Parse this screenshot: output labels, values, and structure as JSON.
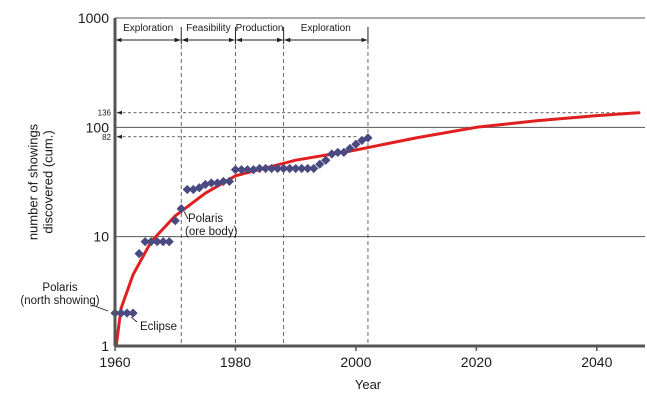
{
  "chart_data": {
    "type": "scatter",
    "xlabel": "Year",
    "ylabel": "number of showings discovered (cum.)",
    "y_scale": "log",
    "xlim": [
      1960,
      2048
    ],
    "ylim": [
      1,
      1000
    ],
    "x_ticks": [
      1960,
      1980,
      2000,
      2020,
      2040
    ],
    "y_ticks": [
      1,
      10,
      100,
      1000
    ],
    "grid": "horizontal",
    "legend": "none",
    "colors": {
      "points": "#4a4a80",
      "fit_curve": "#e02020",
      "grid": "#555555"
    },
    "series": [
      {
        "type": "scatter",
        "marker": "diamond",
        "points": [
          [
            1960,
            2
          ],
          [
            1961,
            2
          ],
          [
            1962,
            2
          ],
          [
            1963,
            2
          ],
          [
            1964,
            7
          ],
          [
            1965,
            9
          ],
          [
            1966,
            9
          ],
          [
            1967,
            9
          ],
          [
            1968,
            9
          ],
          [
            1969,
            9
          ],
          [
            1970,
            14
          ],
          [
            1971,
            18
          ],
          [
            1972,
            27
          ],
          [
            1973,
            27
          ],
          [
            1974,
            28
          ],
          [
            1975,
            30
          ],
          [
            1976,
            31
          ],
          [
            1977,
            31
          ],
          [
            1978,
            32
          ],
          [
            1979,
            32
          ],
          [
            1980,
            41
          ],
          [
            1981,
            41
          ],
          [
            1982,
            41
          ],
          [
            1983,
            41
          ],
          [
            1984,
            42
          ],
          [
            1985,
            42
          ],
          [
            1986,
            42
          ],
          [
            1987,
            42
          ],
          [
            1988,
            42
          ],
          [
            1989,
            42
          ],
          [
            1990,
            42
          ],
          [
            1991,
            42
          ],
          [
            1992,
            42
          ],
          [
            1993,
            42
          ],
          [
            1994,
            46
          ],
          [
            1995,
            50
          ],
          [
            1996,
            57
          ],
          [
            1997,
            59
          ],
          [
            1998,
            59
          ],
          [
            1999,
            64
          ],
          [
            2000,
            70
          ],
          [
            2001,
            76
          ],
          [
            2002,
            80
          ]
        ]
      },
      {
        "type": "line",
        "points": [
          [
            1960.2,
            1
          ],
          [
            1961,
            2.2
          ],
          [
            1963,
            4.5
          ],
          [
            1966,
            9
          ],
          [
            1970,
            15.5
          ],
          [
            1975,
            25
          ],
          [
            1980,
            36
          ],
          [
            1990,
            50
          ],
          [
            2000,
            62
          ],
          [
            2010,
            80
          ],
          [
            2020,
            100
          ],
          [
            2030,
            115
          ],
          [
            2040,
            128
          ],
          [
            2047,
            136
          ]
        ]
      }
    ],
    "phases": [
      {
        "label": "Exploration",
        "from": 1960,
        "to": 1971
      },
      {
        "label": "Feasibility",
        "from": 1971,
        "to": 1980
      },
      {
        "label": "Production",
        "from": 1980,
        "to": 1988
      },
      {
        "label": "Exploration",
        "from": 1988,
        "to": 2002
      }
    ],
    "reference_lines": [
      {
        "label": "136",
        "value": 136
      },
      {
        "label": "82",
        "value": 82
      }
    ],
    "annotations": [
      {
        "lines": [
          "Polaris",
          "(north showing)"
        ],
        "x": 1960,
        "y": 2
      },
      {
        "lines": [
          "Eclipse"
        ],
        "x": 1963,
        "y": 2
      },
      {
        "lines": [
          "Polaris",
          "(ore body)"
        ],
        "x": 1971,
        "y": 18
      }
    ]
  }
}
